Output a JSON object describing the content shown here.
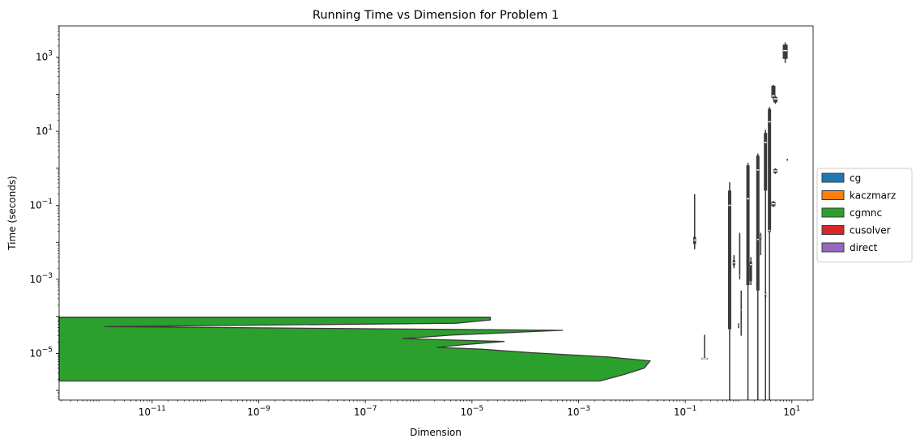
{
  "chart_data": {
    "type": "violin",
    "title": "Running Time vs Dimension for Problem 1",
    "xlabel": "Dimension",
    "ylabel": "Time (seconds)",
    "xscale": "log",
    "yscale": "log",
    "xlim": [
      1.8e-13,
      25
    ],
    "ylim": [
      5.5e-07,
      7000.0
    ],
    "xticks": [
      {
        "value": 1e-11,
        "base": "10",
        "exp": "−11"
      },
      {
        "value": 1e-09,
        "base": "10",
        "exp": "−9"
      },
      {
        "value": 1e-07,
        "base": "10",
        "exp": "−7"
      },
      {
        "value": 1e-05,
        "base": "10",
        "exp": "−5"
      },
      {
        "value": 0.001,
        "base": "10",
        "exp": "−3"
      },
      {
        "value": 0.1,
        "base": "10",
        "exp": "−1"
      },
      {
        "value": 10,
        "base": "10",
        "exp": "1"
      }
    ],
    "yticks": [
      {
        "value": 1e-05,
        "base": "10",
        "exp": "−5"
      },
      {
        "value": 0.001,
        "base": "10",
        "exp": "−3"
      },
      {
        "value": 0.1,
        "base": "10",
        "exp": "−1"
      },
      {
        "value": 10,
        "base": "10",
        "exp": "1"
      },
      {
        "value": 1000,
        "base": "10",
        "exp": "3"
      }
    ],
    "legend": {
      "placement": "center-right-outside",
      "entries": [
        {
          "label": "cg",
          "color": "#1f77b4"
        },
        {
          "label": "kaczmarz",
          "color": "#ff7f0e"
        },
        {
          "label": "cgmnc",
          "color": "#2ca02c"
        },
        {
          "label": "cusolver",
          "color": "#d62728"
        },
        {
          "label": "direct",
          "color": "#9467bd"
        }
      ]
    },
    "series": [
      {
        "name": "cgmnc",
        "color": "#2ca02c",
        "kind": "horizontal-violin",
        "profile": [
          {
            "y": 1.8e-06,
            "x_right": 0.0025
          },
          {
            "y": 2.7e-06,
            "x_right": 0.0072
          },
          {
            "y": 4e-06,
            "x_right": 0.017
          },
          {
            "y": 6.3e-06,
            "x_right": 0.022
          },
          {
            "y": 8e-06,
            "x_right": 0.0035
          },
          {
            "y": 1.05e-05,
            "x_right": 0.00012
          },
          {
            "y": 1.3e-05,
            "x_right": 1.5e-05
          },
          {
            "y": 1.45e-05,
            "x_right": 2.2e-06
          },
          {
            "y": 1.7e-05,
            "x_right": 6.5e-06
          },
          {
            "y": 2.1e-05,
            "x_right": 4e-05
          },
          {
            "y": 2.5e-05,
            "x_right": 5e-07
          },
          {
            "y": 3.1e-05,
            "x_right": 4e-06
          },
          {
            "y": 4.2e-05,
            "x_right": 0.0005
          },
          {
            "y": 5.3e-05,
            "x_right": 1.3e-12
          },
          {
            "y": 6.5e-05,
            "x_right": 5e-06
          },
          {
            "y": 8e-05,
            "x_right": 2.2e-05
          },
          {
            "y": 9.5e-05,
            "x_right": 2.2e-05
          }
        ]
      },
      {
        "name": "cg",
        "color": "#1f77b4",
        "kind": "vertical-violins",
        "items": [
          {
            "x": 0.15,
            "ylo": 0.0065,
            "yhi": 0.2,
            "qlo": 0.009,
            "qhi": 0.014,
            "med": 0.0115,
            "w": 3.5
          },
          {
            "x": 0.23,
            "ylo": 7e-06,
            "yhi": 3.2e-05,
            "qlo": 6.8e-06,
            "qhi": 7.6e-06,
            "med": 7.2e-06,
            "w": 8
          },
          {
            "x": 0.68,
            "ylo": 5.5e-07,
            "yhi": 0.42,
            "qlo": 4.5e-05,
            "qhi": 0.25,
            "med": 0.1,
            "w": 4
          },
          {
            "x": 0.82,
            "ylo": 0.002,
            "yhi": 0.0045,
            "qlo": 0.0024,
            "qhi": 0.0033,
            "med": 0.0028,
            "w": 3
          },
          {
            "x": 1.0,
            "ylo": 4.8e-05,
            "yhi": 6.5e-05,
            "qlo": 5.2e-05,
            "qhi": 6e-05,
            "med": 5.6e-05,
            "w": 2
          },
          {
            "x": 1.12,
            "ylo": 3e-05,
            "yhi": 0.0005,
            "qlo": 8e-05,
            "qhi": 0.00025,
            "med": 0.00015,
            "w": 1.5
          },
          {
            "x": 1.05,
            "ylo": 0.001,
            "yhi": 0.018,
            "qlo": 0.0012,
            "qhi": 0.015,
            "med": 0.0013,
            "w": 1.5
          },
          {
            "x": 1.5,
            "ylo": 5.5e-07,
            "yhi": 1.4,
            "qlo": 0.0007,
            "qhi": 1.2,
            "med": 0.15,
            "w": 4
          },
          {
            "x": 1.7,
            "ylo": 0.0007,
            "yhi": 0.004,
            "qlo": 0.0009,
            "qhi": 0.003,
            "med": 0.0025,
            "w": 3
          },
          {
            "x": 2.3,
            "ylo": 5.5e-07,
            "yhi": 2.5,
            "qlo": 0.0005,
            "qhi": 2.2,
            "med": 0.9,
            "w": 4
          },
          {
            "x": 2.3,
            "ylo": 0.004,
            "yhi": 0.12,
            "qlo": 0.01,
            "qhi": 0.02,
            "med": 0.012,
            "w": 3
          },
          {
            "x": 2.6,
            "ylo": 0.0045,
            "yhi": 0.018,
            "qlo": 0.012,
            "qhi": 0.016,
            "med": 0.014,
            "w": 2
          },
          {
            "x": 3.2,
            "ylo": 5.5e-07,
            "yhi": 11,
            "qlo": 0.25,
            "qhi": 9,
            "med": 5,
            "w": 4
          },
          {
            "x": 3.2,
            "ylo": 0.00025,
            "yhi": 0.0006,
            "qlo": 0.00032,
            "qhi": 0.00045,
            "med": 0.0004,
            "w": 2
          },
          {
            "x": 3.8,
            "ylo": 5.5e-07,
            "yhi": 45,
            "qlo": 0.02,
            "qhi": 40,
            "med": 18,
            "w": 4
          },
          {
            "x": 3.8,
            "ylo": 0.018,
            "yhi": 0.025,
            "qlo": 0.019,
            "qhi": 0.024,
            "med": 0.021,
            "w": 3
          },
          {
            "x": 4.5,
            "ylo": 70,
            "yhi": 180,
            "qlo": 80,
            "qhi": 170,
            "med": 90,
            "w": 5
          },
          {
            "x": 4.5,
            "ylo": 0.09,
            "yhi": 0.13,
            "qlo": 0.095,
            "qhi": 0.125,
            "med": 0.11,
            "w": 5
          },
          {
            "x": 4.9,
            "ylo": 0.7,
            "yhi": 1.0,
            "qlo": 0.75,
            "qhi": 0.95,
            "med": 0.85,
            "w": 5
          },
          {
            "x": 4.9,
            "ylo": 55,
            "yhi": 90,
            "qlo": 60,
            "qhi": 85,
            "med": 75,
            "w": 5
          },
          {
            "x": 7.5,
            "ylo": 700,
            "yhi": 2500,
            "qlo": 900,
            "qhi": 2200,
            "med": 1500,
            "w": 6
          },
          {
            "x": 8.2,
            "ylo": 1.6,
            "yhi": 1.8,
            "qlo": 1.65,
            "qhi": 1.75,
            "med": 1.7,
            "w": 1
          }
        ]
      }
    ]
  }
}
